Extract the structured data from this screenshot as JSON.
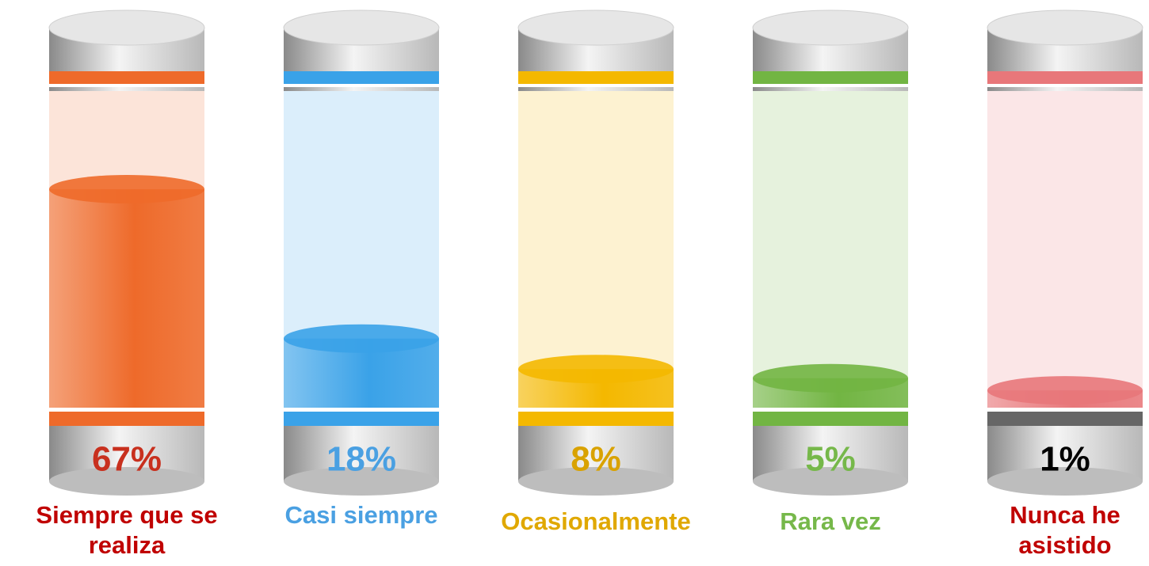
{
  "chart_data": {
    "type": "bar",
    "categories": [
      "Siempre que se realiza",
      "Casi siempre",
      "Ocasionalmente",
      "Rara vez",
      "Nunca he asistido"
    ],
    "values": [
      67,
      18,
      8,
      5,
      1
    ],
    "value_labels": [
      "67%",
      "18%",
      "8%",
      "5%",
      "1%"
    ],
    "colors": [
      "#ee6a2a",
      "#3aa2e8",
      "#f4b800",
      "#72b543",
      "#e8777a"
    ],
    "value_label_colors": [
      "#c8301e",
      "#4aa0e2",
      "#d9a200",
      "#76b84a",
      "#000000"
    ],
    "category_label_colors": [
      "#c00000",
      "#4aa0e2",
      "#e0a800",
      "#76b84a",
      "#c00000"
    ]
  }
}
